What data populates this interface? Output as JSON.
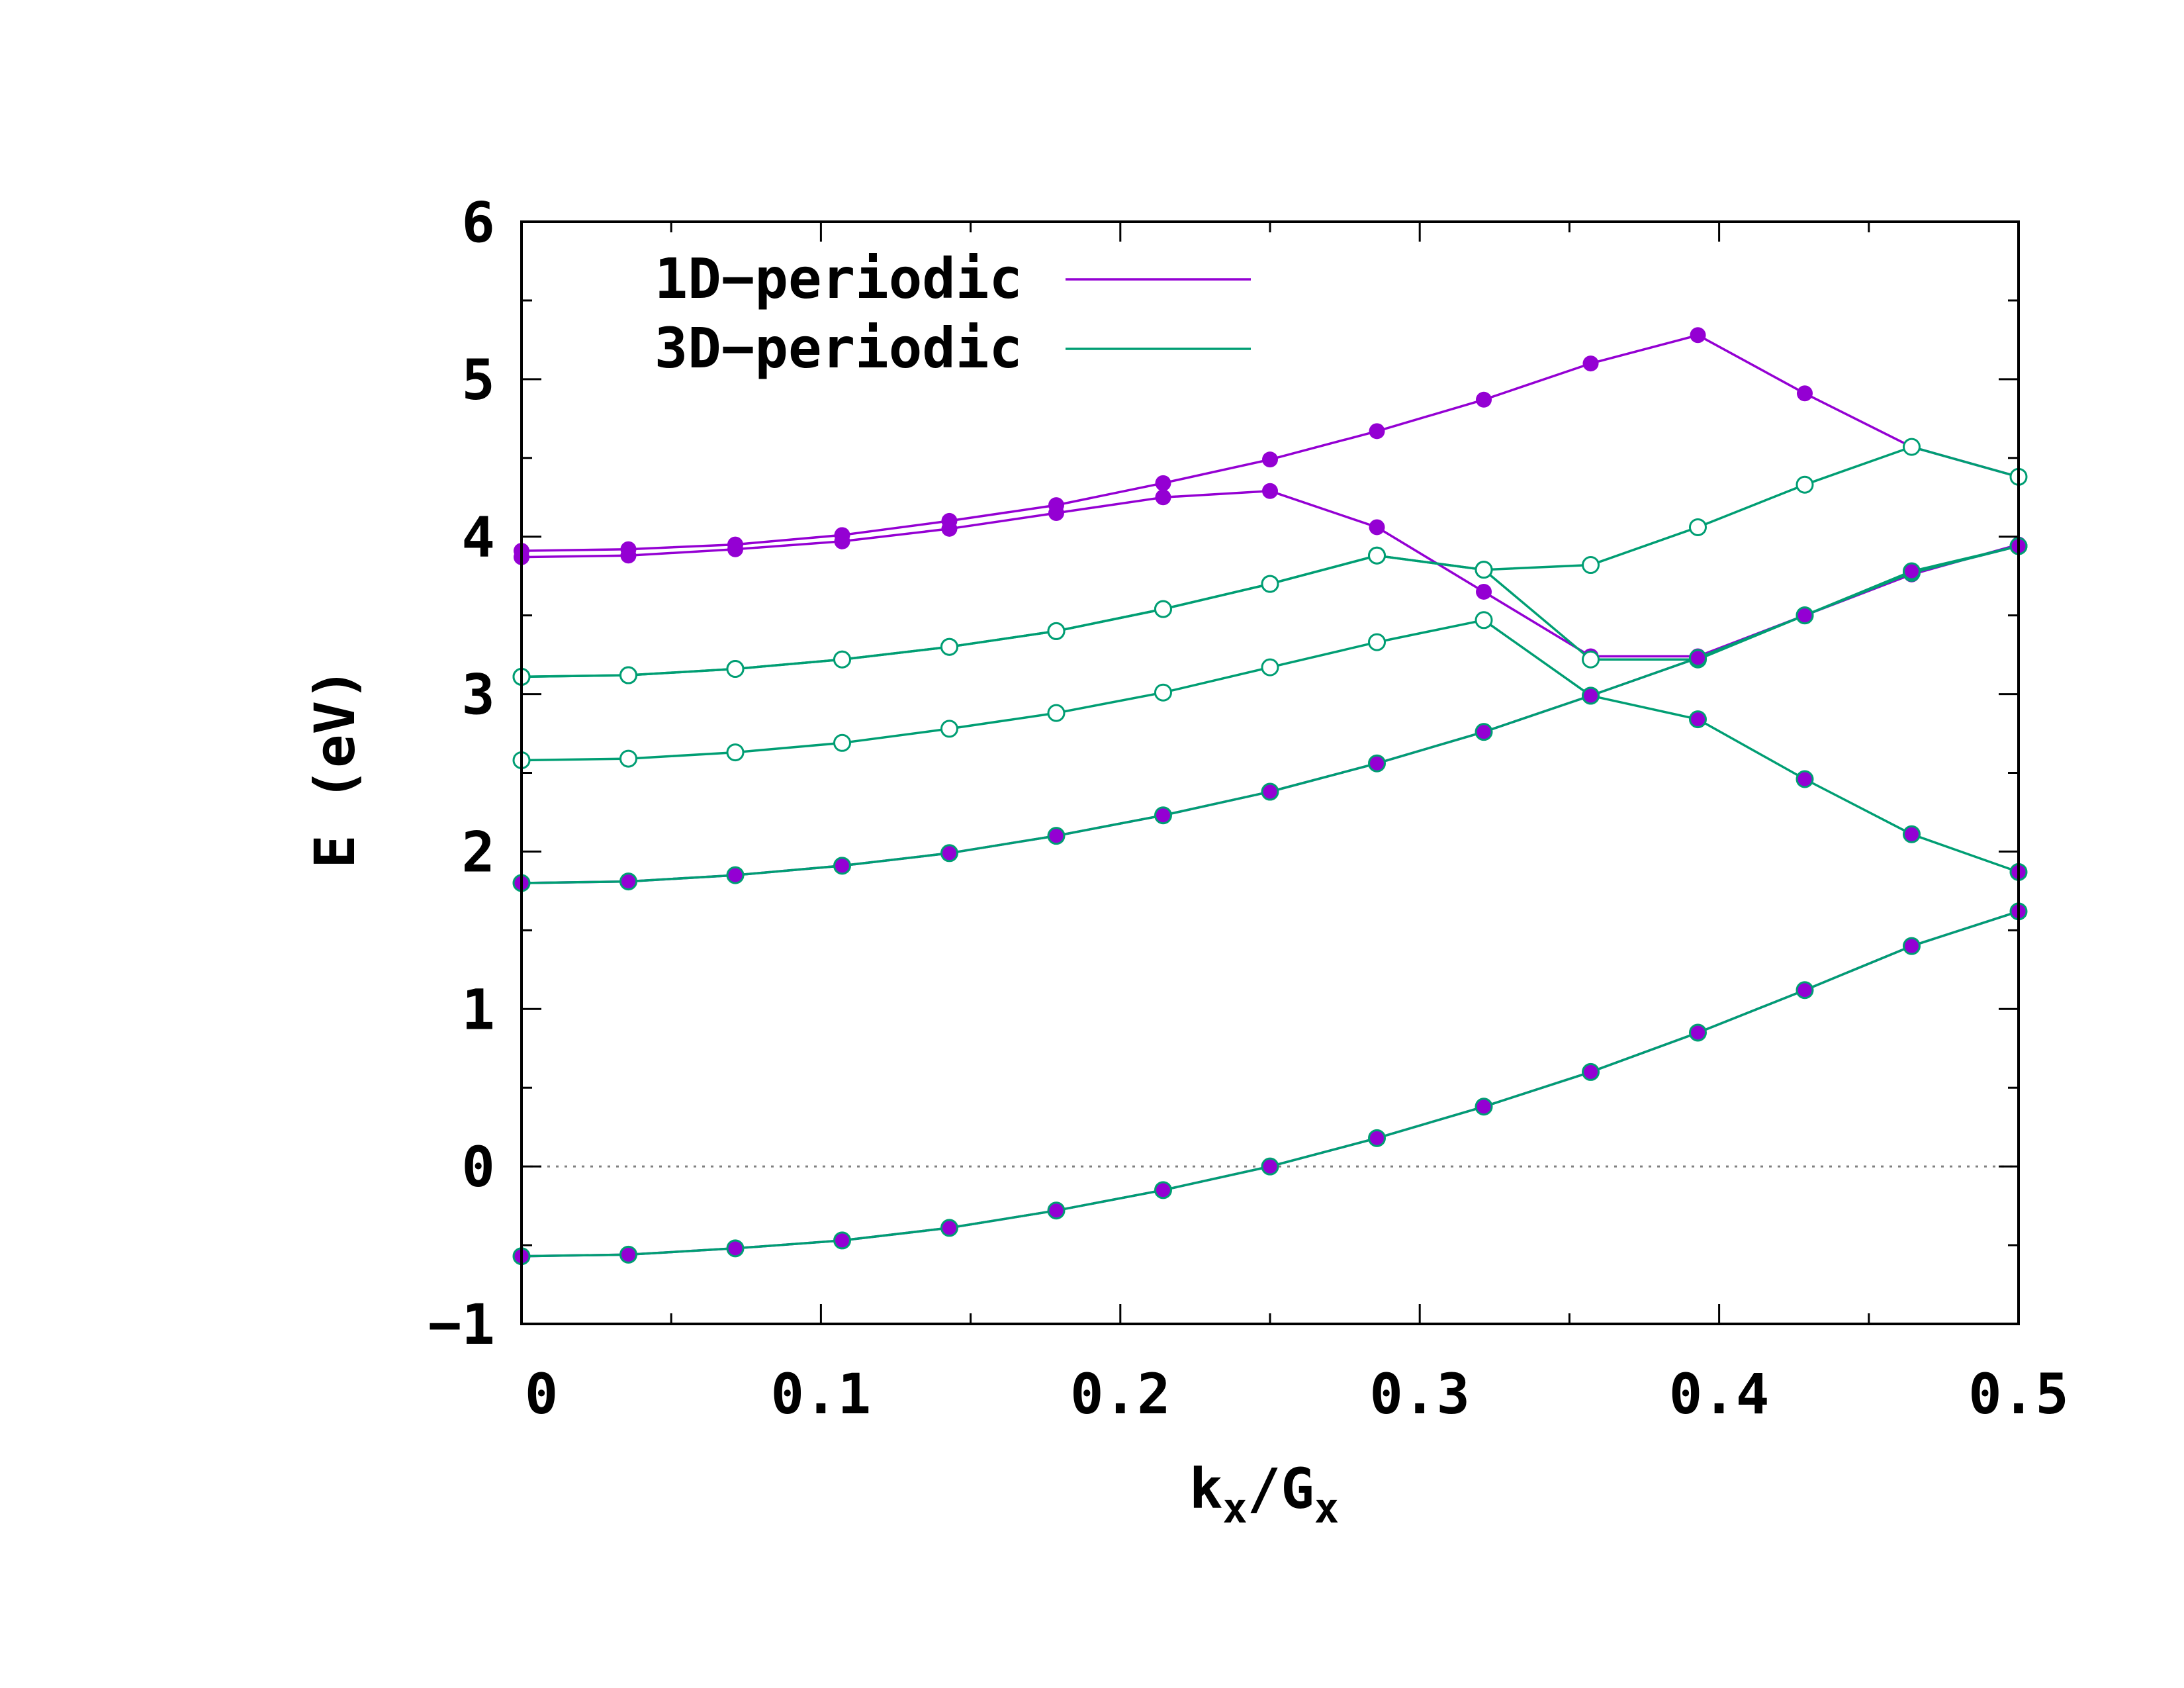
{
  "chart_data": {
    "type": "line",
    "xlabel": {
      "main": "k",
      "sub1": "x",
      "mid": "/G",
      "sub2": "x"
    },
    "ylabel": "E (eV)",
    "xlim": [
      0,
      0.5
    ],
    "ylim": [
      -1,
      6
    ],
    "x_ticks": [
      0,
      0.1,
      0.2,
      0.3,
      0.4,
      0.5
    ],
    "x_tick_labels": [
      "0",
      "0.1",
      "0.2",
      "0.3",
      "0.4",
      "0.5"
    ],
    "y_ticks": [
      -1,
      0,
      1,
      2,
      3,
      4,
      5,
      6
    ],
    "y_tick_labels": [
      "−1",
      "0",
      "1",
      "2",
      "3",
      "4",
      "5",
      "6"
    ],
    "reference_line": {
      "y": 0,
      "style": "dotted",
      "color": "#808080"
    },
    "legend": {
      "placement": "top-left",
      "entries": [
        {
          "label": "1D−periodic",
          "color": "#9400D3"
        },
        {
          "label": "3D−periodic",
          "color": "#009E73"
        }
      ]
    },
    "x": [
      0,
      0.0357,
      0.0714,
      0.1071,
      0.1429,
      0.1786,
      0.2143,
      0.25,
      0.2857,
      0.3214,
      0.3571,
      0.3929,
      0.4286,
      0.4643,
      0.5
    ],
    "series": [
      {
        "group": "1D−periodic",
        "color": "#9400D3",
        "marker": "filled",
        "y": [
          -0.57,
          -0.56,
          -0.52,
          -0.47,
          -0.39,
          -0.28,
          -0.15,
          0.0,
          0.18,
          0.38,
          0.6,
          0.85,
          1.12,
          1.4,
          1.62
        ]
      },
      {
        "group": "1D−periodic",
        "color": "#9400D3",
        "marker": "filled",
        "y": [
          1.8,
          1.81,
          1.85,
          1.91,
          1.99,
          2.1,
          2.23,
          2.38,
          2.56,
          2.76,
          2.99,
          3.23,
          3.5,
          3.77,
          3.94
        ]
      },
      {
        "group": "1D−periodic",
        "color": "#9400D3",
        "marker": "filled",
        "y": [
          3.87,
          3.88,
          3.92,
          3.97,
          4.05,
          4.15,
          4.25,
          4.29,
          4.06,
          3.65,
          3.24,
          3.24,
          3.5,
          3.76,
          3.95
        ]
      },
      {
        "group": "1D−periodic",
        "color": "#9400D3",
        "marker": "filled",
        "y": [
          3.91,
          3.92,
          3.95,
          4.01,
          4.1,
          4.2,
          4.34,
          4.49,
          4.67,
          4.87,
          5.1,
          5.28,
          4.91,
          4.57,
          4.38
        ]
      },
      {
        "group": "3D−periodic",
        "color": "#009E73",
        "marker": "overlay",
        "y": [
          -0.57,
          -0.56,
          -0.52,
          -0.47,
          -0.39,
          -0.28,
          -0.15,
          0.0,
          0.18,
          0.38,
          0.6,
          0.85,
          1.12,
          1.4,
          1.62
        ]
      },
      {
        "group": "3D−periodic",
        "color": "#009E73",
        "marker": "overlay",
        "y": [
          1.8,
          1.81,
          1.85,
          1.91,
          1.99,
          2.1,
          2.23,
          2.38,
          2.56,
          2.76,
          2.99,
          3.23,
          3.5,
          3.78,
          3.94
        ]
      },
      {
        "group": "3D−periodic",
        "color": "#009E73",
        "marker": "mixed",
        "open_count": 10,
        "y": [
          2.58,
          2.59,
          2.63,
          2.69,
          2.78,
          2.88,
          3.01,
          3.17,
          3.33,
          3.47,
          2.99,
          2.84,
          2.46,
          2.11,
          1.87
        ]
      },
      {
        "group": "3D−periodic",
        "color": "#009E73",
        "marker": "open",
        "y": [
          3.11,
          3.12,
          3.16,
          3.22,
          3.3,
          3.4,
          3.54,
          3.7,
          3.88,
          3.79,
          3.22,
          3.22,
          3.5,
          3.77,
          3.94
        ]
      },
      {
        "group": "3D−periodic",
        "color": "#009E73",
        "marker": "open",
        "y": [
          3.11,
          3.12,
          3.16,
          3.22,
          3.3,
          3.4,
          3.54,
          3.7,
          3.88,
          3.79,
          3.82,
          4.06,
          4.33,
          4.57,
          4.38
        ]
      }
    ]
  }
}
